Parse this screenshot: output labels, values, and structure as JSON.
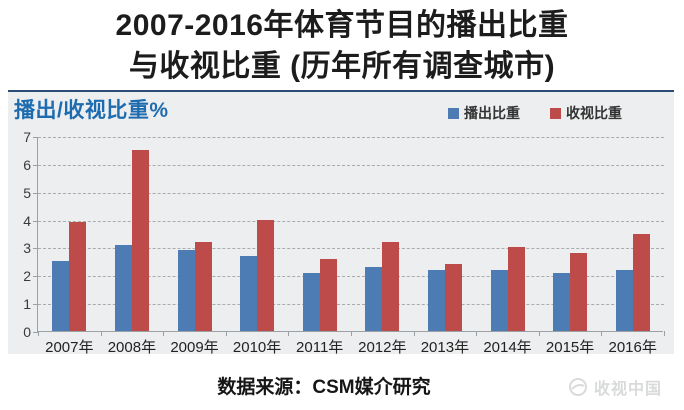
{
  "title": {
    "line1": "2007-2016年体育节目的播出比重",
    "line2": "与收视比重 (历年所有调查城市)"
  },
  "chart_data": {
    "type": "bar",
    "title": "播出/收视比重%",
    "categories": [
      "2007年",
      "2008年",
      "2009年",
      "2010年",
      "2011年",
      "2012年",
      "2013年",
      "2014年",
      "2015年",
      "2016年"
    ],
    "series": [
      {
        "name": "播出比重",
        "color": "#4d7cb5",
        "values": [
          2.5,
          3.1,
          2.9,
          2.7,
          2.1,
          2.3,
          2.2,
          2.2,
          2.1,
          2.2
        ]
      },
      {
        "name": "收视比重",
        "color": "#bd4b49",
        "values": [
          3.9,
          6.5,
          3.2,
          4.0,
          2.6,
          3.2,
          2.4,
          3.0,
          2.8,
          3.5
        ]
      }
    ],
    "ylim": [
      0,
      7
    ],
    "yticks": [
      0,
      1,
      2,
      3,
      4,
      5,
      6,
      7
    ],
    "grid": "horizontal-dashed",
    "legend_position": "top-right",
    "panel_bg": "#edeeef",
    "panel_top_border": "#2d4b77"
  },
  "footer": {
    "source": "数据来源：CSM媒介研究",
    "watermark": "收视中国"
  }
}
